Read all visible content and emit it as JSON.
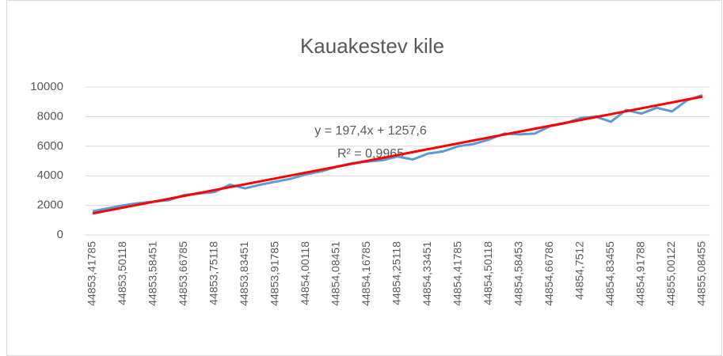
{
  "chart_data": {
    "type": "line",
    "title": "Kauakestev kile",
    "categories": [
      "44853,41785",
      null,
      "44853,50118",
      null,
      "44853,58451",
      null,
      "44853,66785",
      null,
      "44853,75118",
      null,
      "44853,83451",
      null,
      "44853,91785",
      null,
      "44854,00118",
      null,
      "44854,08451",
      null,
      "44854,16785",
      null,
      "44854,25118",
      null,
      "44854,33451",
      null,
      "44854,41785",
      null,
      "44854,50118",
      null,
      "44854,58453",
      null,
      "44854,66786",
      null,
      "44854,7512",
      null,
      "44854,83455",
      null,
      "44854,91788",
      null,
      "44855,00122",
      null,
      "44855,08455"
    ],
    "series": [
      {
        "name": "Kauakestev kile",
        "color": "#5b9bd5",
        "values": [
          1600,
          1800,
          2000,
          2150,
          2250,
          2350,
          2700,
          2800,
          2900,
          3400,
          3150,
          3400,
          3600,
          3800,
          4100,
          4300,
          4600,
          4850,
          4950,
          5050,
          5300,
          5100,
          5500,
          5650,
          6000,
          6150,
          6450,
          6850,
          6800,
          6850,
          7350,
          7550,
          7900,
          8000,
          7650,
          8450,
          8200,
          8600,
          8350,
          9100,
          9450
        ]
      }
    ],
    "trendline": {
      "equation": "y = 197,4x + 1257,6",
      "r_squared": "R² = 0,9965",
      "slope": 197.4,
      "intercept": 1257.6,
      "color": "#ff0000"
    },
    "ylim": [
      0,
      10000
    ],
    "yticks": [
      0,
      2000,
      4000,
      6000,
      8000,
      10000
    ],
    "grid": true
  }
}
